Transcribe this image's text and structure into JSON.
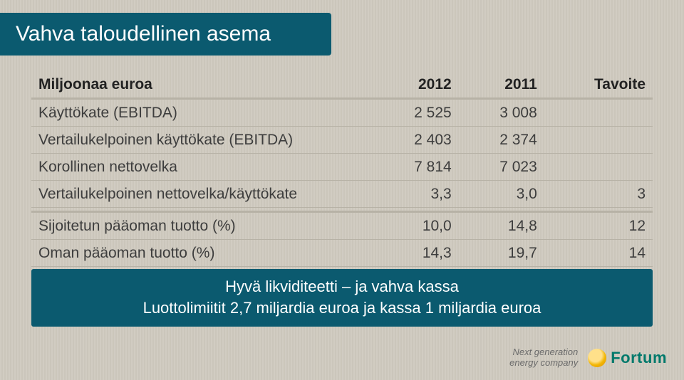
{
  "colors": {
    "background": "#cfcabf",
    "band": "#0b5a6f",
    "text": "#3d3d3d",
    "rule": "#b7b2a6",
    "logo_text": "#00796b"
  },
  "title": "Vahva taloudellinen asema",
  "table": {
    "headers": [
      "Miljoonaa euroa",
      "2012",
      "2011",
      "Tavoite"
    ],
    "rows_block1": [
      {
        "label": "Käyttökate (EBITDA)",
        "c2012": "2 525",
        "c2011": "3 008",
        "target": ""
      },
      {
        "label": "Vertailukelpoinen käyttökate (EBITDA)",
        "c2012": "2 403",
        "c2011": "2 374",
        "target": ""
      },
      {
        "label": "Korollinen nettovelka",
        "c2012": "7 814",
        "c2011": "7 023",
        "target": ""
      },
      {
        "label": "Vertailukelpoinen nettovelka/käyttökate",
        "c2012": "3,3",
        "c2011": "3,0",
        "target": "3"
      }
    ],
    "rows_block2": [
      {
        "label": "Sijoitetun pääoman tuotto (%)",
        "c2012": "10,0",
        "c2011": "14,8",
        "target": "12"
      },
      {
        "label": "Oman pääoman tuotto (%)",
        "c2012": "14,3",
        "c2011": "19,7",
        "target": "14"
      }
    ]
  },
  "highlight": {
    "line1": "Hyvä likviditeetti – ja vahva kassa",
    "line2": "Luottolimiitit 2,7 miljardia euroa ja kassa 1 miljardia euroa"
  },
  "footer": {
    "tagline_line1": "Next generation",
    "tagline_line2": "energy company",
    "brand": "Fortum"
  }
}
